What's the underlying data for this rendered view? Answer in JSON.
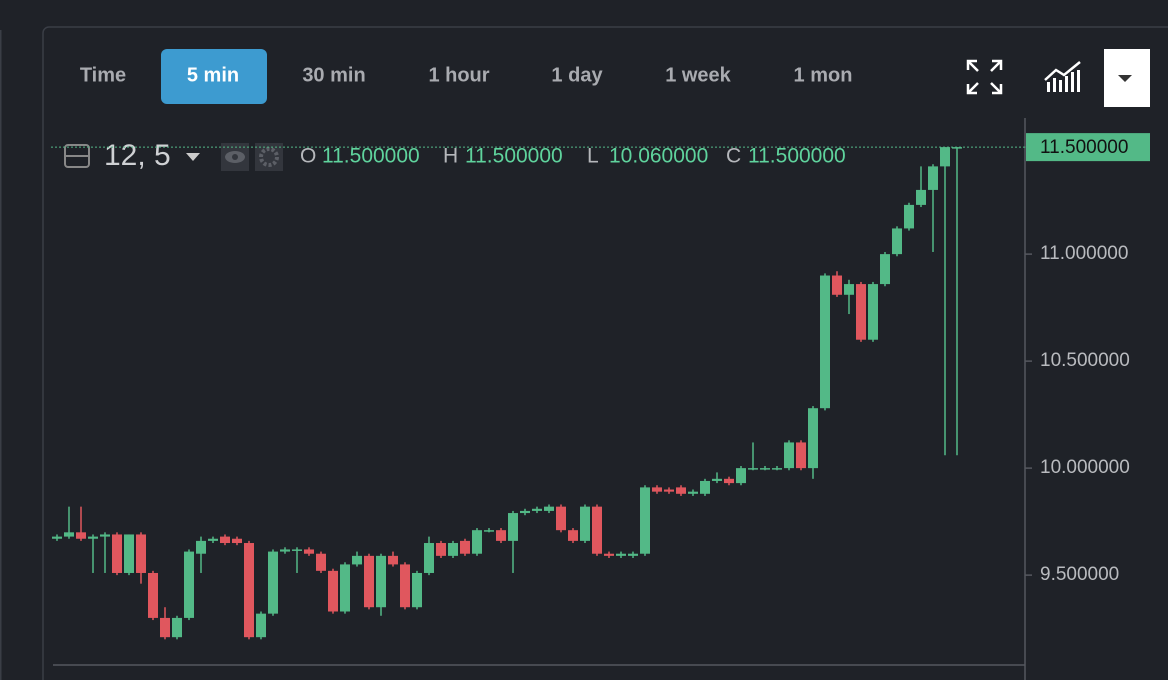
{
  "toolbar": {
    "timeframes": [
      "Time",
      "5 min",
      "30 min",
      "1 hour",
      "1 day",
      "1 week",
      "1 mon"
    ],
    "active_index": 1
  },
  "legend": {
    "symbol": "12, 5",
    "ohlc": [
      {
        "key": "O",
        "value": "11.500000"
      },
      {
        "key": "H",
        "value": "11.500000"
      },
      {
        "key": "L",
        "value": "10.060000"
      },
      {
        "key": "C",
        "value": "11.500000"
      }
    ]
  },
  "chart_data": {
    "type": "candlestick",
    "up_color": "#53b987",
    "down_color": "#e0575e",
    "open": [
      9.67,
      9.68,
      9.7,
      9.67,
      9.68,
      9.69,
      9.51,
      9.69,
      9.51,
      9.3,
      9.21,
      9.3,
      9.6,
      9.66,
      9.68,
      9.67,
      9.65,
      9.21,
      9.32,
      9.61,
      9.62,
      9.62,
      9.6,
      9.52,
      9.33,
      9.55,
      9.59,
      9.35,
      9.59,
      9.55,
      9.35,
      9.51,
      9.65,
      9.59,
      9.66,
      9.6,
      9.71,
      9.71,
      9.66,
      9.79,
      9.8,
      9.8,
      9.82,
      9.71,
      9.66,
      9.82,
      9.6,
      9.59,
      9.59,
      9.6,
      9.91,
      9.9,
      9.91,
      9.88,
      9.88,
      9.94,
      9.95,
      9.93,
      10.0,
      10.0,
      10.0,
      10.0,
      10.12,
      10.0,
      10.28,
      10.9,
      10.81,
      10.86,
      10.6,
      10.86,
      11.0,
      11.12,
      11.23,
      11.3,
      11.41,
      11.5
    ],
    "high": [
      9.69,
      9.82,
      9.82,
      9.69,
      9.7,
      9.7,
      9.69,
      9.7,
      9.52,
      9.35,
      9.31,
      9.62,
      9.68,
      9.68,
      9.69,
      9.68,
      9.66,
      9.33,
      9.62,
      9.63,
      9.63,
      9.63,
      9.61,
      9.53,
      9.56,
      9.61,
      9.6,
      9.6,
      9.61,
      9.56,
      9.52,
      9.68,
      9.66,
      9.66,
      9.67,
      9.72,
      9.72,
      9.72,
      9.8,
      9.81,
      9.82,
      9.83,
      9.83,
      9.72,
      9.83,
      9.83,
      9.61,
      9.61,
      9.61,
      9.92,
      9.92,
      9.91,
      9.92,
      9.9,
      9.95,
      9.98,
      9.96,
      10.01,
      10.12,
      10.01,
      10.01,
      10.13,
      10.13,
      10.29,
      10.91,
      10.92,
      10.88,
      10.87,
      10.87,
      11.01,
      11.13,
      11.24,
      11.41,
      11.42,
      11.5,
      11.5
    ],
    "low": [
      9.66,
      9.67,
      9.66,
      9.51,
      9.51,
      9.5,
      9.5,
      9.46,
      9.29,
      9.2,
      9.2,
      9.29,
      9.51,
      9.65,
      9.64,
      9.64,
      9.2,
      9.2,
      9.31,
      9.6,
      9.51,
      9.59,
      9.51,
      9.32,
      9.32,
      9.54,
      9.34,
      9.31,
      9.54,
      9.34,
      9.34,
      9.5,
      9.58,
      9.58,
      9.59,
      9.59,
      9.7,
      9.65,
      9.51,
      9.78,
      9.79,
      9.79,
      9.7,
      9.65,
      9.65,
      9.59,
      9.58,
      9.58,
      9.58,
      9.59,
      9.88,
      9.88,
      9.87,
      9.87,
      9.87,
      9.93,
      9.92,
      9.92,
      9.99,
      9.99,
      9.99,
      9.99,
      9.99,
      9.95,
      10.27,
      10.8,
      10.72,
      10.59,
      10.59,
      10.85,
      10.99,
      11.11,
      11.22,
      11.01,
      10.06,
      10.06
    ],
    "close": [
      9.68,
      9.7,
      9.67,
      9.68,
      9.69,
      9.51,
      9.69,
      9.51,
      9.3,
      9.21,
      9.3,
      9.61,
      9.66,
      9.67,
      9.65,
      9.65,
      9.21,
      9.32,
      9.61,
      9.62,
      9.62,
      9.6,
      9.52,
      9.33,
      9.55,
      9.59,
      9.35,
      9.59,
      9.55,
      9.35,
      9.51,
      9.65,
      9.59,
      9.65,
      9.6,
      9.71,
      9.71,
      9.66,
      9.79,
      9.8,
      9.81,
      9.82,
      9.71,
      9.66,
      9.82,
      9.6,
      9.59,
      9.6,
      9.6,
      9.91,
      9.89,
      9.89,
      9.88,
      9.89,
      9.94,
      9.95,
      9.93,
      10.0,
      10.0,
      10.0,
      10.0,
      10.12,
      10.0,
      10.28,
      10.9,
      10.81,
      10.86,
      10.6,
      10.86,
      11.0,
      11.12,
      11.23,
      11.3,
      11.41,
      11.5,
      11.5
    ],
    "ylim": [
      9.08,
      11.58
    ],
    "yticks": [
      {
        "value": 11.5,
        "label": "11.500000"
      },
      {
        "value": 11,
        "label": "11.000000"
      },
      {
        "value": 10.5,
        "label": "10.500000"
      },
      {
        "value": 10,
        "label": "10.000000"
      },
      {
        "value": 9.5,
        "label": "9.500000"
      }
    ],
    "last_price": {
      "value": 11.5,
      "label": "11.500000"
    }
  }
}
